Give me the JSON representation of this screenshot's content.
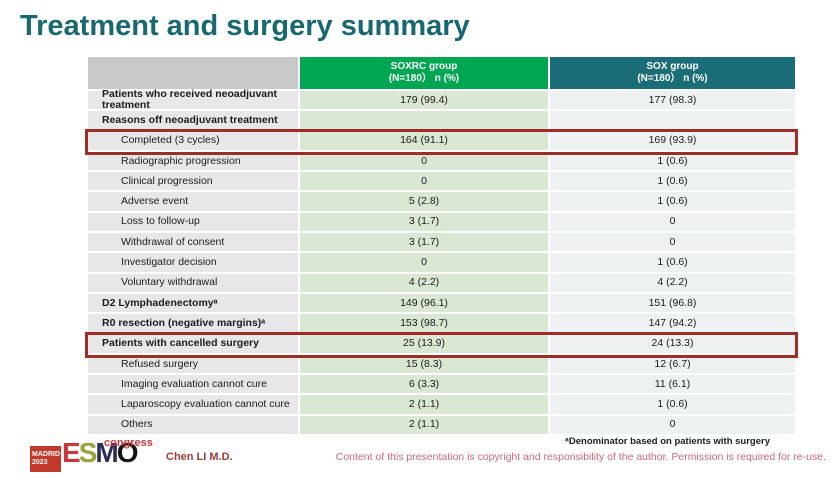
{
  "slide": {
    "title": "Treatment and surgery summary",
    "presenter": "Chen LI M.D.",
    "footnote": "ᵃDenominator based on patients with surgery",
    "copyright": "Content of this presentation is copyright and responsibility of the author. Permission is required for re-use."
  },
  "logo": {
    "city": "MADRID",
    "year": "2023",
    "letters": [
      "E",
      "S",
      "M",
      "O"
    ],
    "congress": "congress"
  },
  "table": {
    "columns": [
      {
        "label": "",
        "sublabel": ""
      },
      {
        "label": "SOXRC group",
        "sublabel": "(N=180） n (%)"
      },
      {
        "label": "SOX group",
        "sublabel": "(N=180） n (%)"
      }
    ],
    "rows": [
      {
        "label": "Patients who received neoadjuvant treatment",
        "soxrc": "179 (99.4)",
        "sox": "177 (98.3)",
        "bold": true,
        "indent": false,
        "highlight": false
      },
      {
        "label": "Reasons off neoadjuvant treatment",
        "soxrc": "",
        "sox": "",
        "bold": true,
        "indent": false,
        "highlight": false
      },
      {
        "label": "Completed (3 cycles)",
        "soxrc": "164 (91.1)",
        "sox": "169 (93.9)",
        "bold": false,
        "indent": true,
        "highlight": true
      },
      {
        "label": "Radiographic progression",
        "soxrc": "0",
        "sox": "1 (0.6)",
        "bold": false,
        "indent": true,
        "highlight": false
      },
      {
        "label": "Clinical progression",
        "soxrc": "0",
        "sox": "1 (0.6)",
        "bold": false,
        "indent": true,
        "highlight": false
      },
      {
        "label": "Adverse event",
        "soxrc": "5 (2.8)",
        "sox": "1 (0.6)",
        "bold": false,
        "indent": true,
        "highlight": false
      },
      {
        "label": "Loss to follow-up",
        "soxrc": "3 (1.7)",
        "sox": "0",
        "bold": false,
        "indent": true,
        "highlight": false
      },
      {
        "label": "Withdrawal of consent",
        "soxrc": "3 (1.7)",
        "sox": "0",
        "bold": false,
        "indent": true,
        "highlight": false
      },
      {
        "label": "Investigator decision",
        "soxrc": "0",
        "sox": "1 (0.6)",
        "bold": false,
        "indent": true,
        "highlight": false
      },
      {
        "label": "Voluntary withdrawal",
        "soxrc": "4 (2.2)",
        "sox": "4 (2.2)",
        "bold": false,
        "indent": true,
        "highlight": false
      },
      {
        "label": "D2 Lymphadenectomyᵃ",
        "soxrc": "149 (96.1)",
        "sox": "151 (96.8)",
        "bold": true,
        "indent": false,
        "highlight": false
      },
      {
        "label": "R0 resection (negative margins)ᵃ",
        "soxrc": "153 (98.7)",
        "sox": "147 (94.2)",
        "bold": true,
        "indent": false,
        "highlight": false
      },
      {
        "label": "Patients with cancelled surgery",
        "soxrc": "25 (13.9)",
        "sox": "24 (13.3)",
        "bold": true,
        "indent": false,
        "highlight": true
      },
      {
        "label": "Refused surgery",
        "soxrc": "15 (8.3)",
        "sox": "12 (6.7)",
        "bold": false,
        "indent": true,
        "highlight": false
      },
      {
        "label": "Imaging evaluation cannot cure",
        "soxrc": "6 (3.3)",
        "sox": "11 (6.1)",
        "bold": false,
        "indent": true,
        "highlight": false
      },
      {
        "label": "Laparoscopy evaluation cannot cure",
        "soxrc": "2 (1.1)",
        "sox": "1 (0.6)",
        "bold": false,
        "indent": true,
        "highlight": false
      },
      {
        "label": "Others",
        "soxrc": "2 (1.1)",
        "sox": "0",
        "bold": false,
        "indent": true,
        "highlight": false
      }
    ]
  },
  "colors": {
    "title_text": "#17696f",
    "header_soxrc_bg": "#00a651",
    "header_sox_bg": "#1b6e78",
    "header_empty_bg": "#c9c9c9",
    "label_column_bg": "#e7e7e7",
    "soxrc_column_bg": "#d9e7d3",
    "sox_column_bg": "#eef1f1",
    "highlight_border": "#9e2d28",
    "presenter_text": "#9e3b36",
    "copyright_text": "#c9697a",
    "madrid_badge_bg": "#c0392b"
  }
}
